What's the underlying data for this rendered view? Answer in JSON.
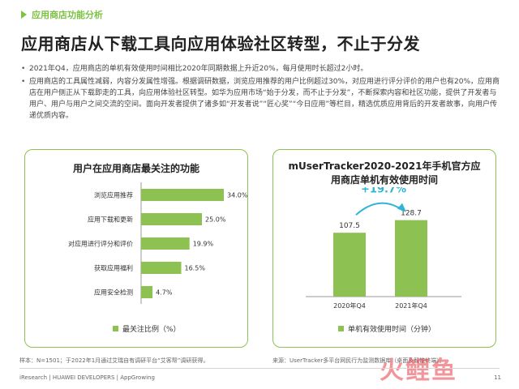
{
  "header": {
    "section_tag": "应用商店功能分析",
    "title": "应用商店从下载工具向应用体验社区转型，不止于分发"
  },
  "bullets": [
    "2021年Q4，应用商店的单机有效使用时间相比2020年同期数据上升近20%，每月使用时长超过2小时。",
    "应用商店的工具属性减弱，内容分发属性增强。根据调研数据，浏览应用推荐的用户比例超过30%，对应用进行评分评价的用户也有20%，应用商店在用户侧正从下载即走的工具，向应用体验社区转型。如华为应用市场“始于分发，而不止于分发”，不断探索内容和社区功能，提供了开发者与用户、用户与用户之间交流的空间。面向开发者提供了诸多如“开发者说”“匠心奖”“今日应用”等栏目，精选优质应用背后的开发者故事，向用户传递优质内容。"
  ],
  "colors": {
    "accent": "#8dc152",
    "bar": "#8dc152",
    "growth": "#2eb4d6"
  },
  "chart_data": [
    {
      "type": "bar",
      "orientation": "horizontal",
      "title": "用户在应用商店最关注的功能",
      "categories": [
        "浏览应用推荐",
        "应用下载和更新",
        "对应用进行评分和评价",
        "获取应用福利",
        "应用安全检测"
      ],
      "values": [
        34.0,
        25.0,
        19.9,
        16.5,
        4.7
      ],
      "value_labels": [
        "34.0%",
        "25.0%",
        "19.9%",
        "16.5%",
        "4.7%"
      ],
      "xlim": [
        0,
        40
      ],
      "series": [
        {
          "name": "最关注比例（%）",
          "values": [
            34.0,
            25.0,
            19.9,
            16.5,
            4.7
          ]
        }
      ],
      "legend": "bottom",
      "grid": false
    },
    {
      "type": "bar",
      "orientation": "vertical",
      "title_lines": [
        "mUserTracker2020-2021年手机官方应",
        "用商店单机有效使用时间"
      ],
      "categories": [
        "2020年Q4",
        "2021年Q4"
      ],
      "values": [
        107.5,
        128.7
      ],
      "value_labels": [
        "107.5",
        "128.7"
      ],
      "ylim": [
        0,
        150
      ],
      "series": [
        {
          "name": "单机有效使用时间（分钟）",
          "values": [
            107.5,
            128.7
          ]
        }
      ],
      "annotation": "+19.7%",
      "legend": "bottom",
      "grid": false
    }
  ],
  "notes": {
    "left": "样本：N=1501；于2022年1月通过艾瑞自有调研平台“艾客帮”调研获得。",
    "right": "来源：UserTracker多平台网民行为监测数据库（桌面及智能终端）。"
  },
  "footer": {
    "source": "iResearch | HUAWEI DEVELOPERS | AppGrowing",
    "page": "11"
  },
  "watermark": "火鲤鱼"
}
